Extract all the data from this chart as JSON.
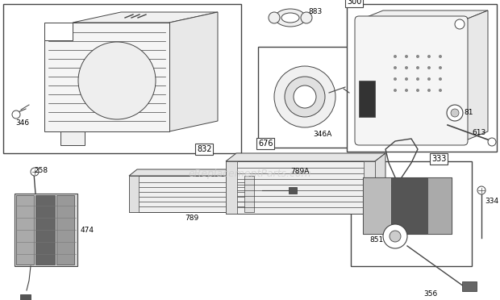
{
  "bg_color": "#ffffff",
  "lc": "#444444",
  "watermark": "eReplacementParts.com",
  "wm_color": "#cccccc",
  "fig_w": 6.2,
  "fig_h": 3.72,
  "dpi": 100,
  "xmax": 620,
  "ymax": 372
}
